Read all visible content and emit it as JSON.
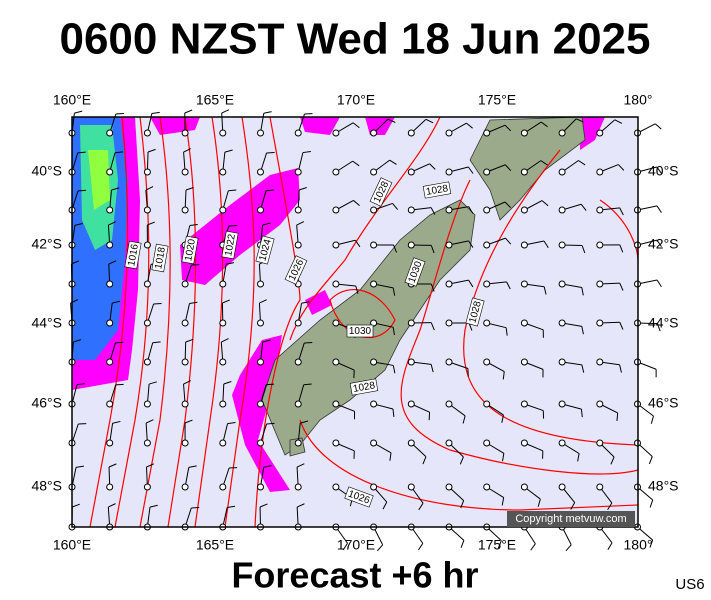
{
  "title": "0600 NZST Wed 18 Jun 2025",
  "lon_labels": [
    "160°E",
    "165°E",
    "170°E",
    "175°E",
    "180°"
  ],
  "lat_labels": [
    "40°S",
    "42°S",
    "44°S",
    "46°S",
    "48°S"
  ],
  "isobar_labels": [
    "1016",
    "1018",
    "1020",
    "1022",
    "1024",
    "1026",
    "1028",
    "1028",
    "1030",
    "1030",
    "1028",
    "1028",
    "1026"
  ],
  "copyright": "Copyright metvuw.com",
  "footer": "Forecast +6 hr",
  "code": "US6"
}
